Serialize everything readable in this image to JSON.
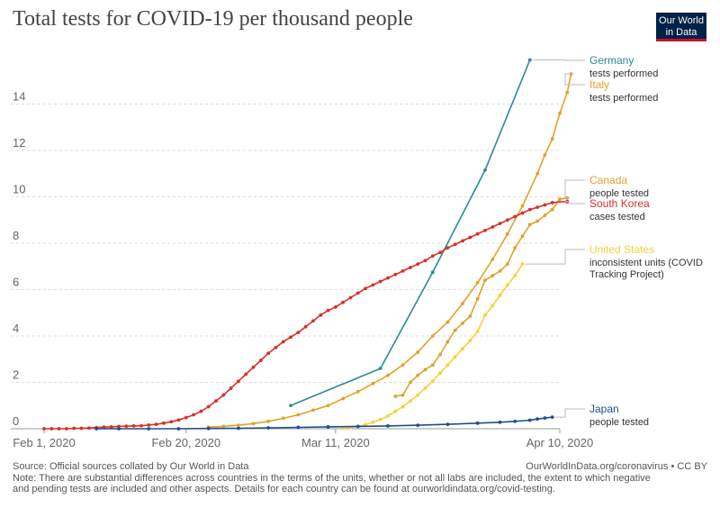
{
  "header": {
    "title": "Total tests for COVID-19 per thousand people",
    "logo_line1": "Our World",
    "logo_line2": "in Data"
  },
  "footer": {
    "source": "Source: Official sources collated by Our World in Data",
    "credit": "OurWorldInData.org/coronavirus • CC BY",
    "note_line1": "Note: There are substantial differences across countries in the terms of the units, whether or not all labs are included, the extent to which negative",
    "note_line2": "and pending tests are included and other aspects. Details for each country can be found at ourworldindata.org/covid-testing."
  },
  "chart_data": {
    "type": "line",
    "title": "Total tests for COVID-19 per thousand people",
    "xlabel": "",
    "ylabel": "",
    "x_unit": "days since Feb 1, 2020",
    "xlim": [
      0,
      69
    ],
    "ylim": [
      0,
      16
    ],
    "x_ticks": [
      {
        "day": 0,
        "label": "Feb 1, 2020"
      },
      {
        "day": 19,
        "label": "Feb 20, 2020"
      },
      {
        "day": 39,
        "label": "Mar 11, 2020"
      },
      {
        "day": 69,
        "label": "Apr 10, 2020"
      }
    ],
    "y_ticks": [
      0,
      2,
      4,
      6,
      8,
      10,
      12,
      14
    ],
    "grid": true,
    "series": [
      {
        "name": "Germany",
        "sublabel": "tests performed",
        "color": "#2a8b96",
        "points": [
          [
            33,
            1.0
          ],
          [
            45,
            2.6
          ],
          [
            52,
            6.75
          ],
          [
            59,
            11.15
          ],
          [
            65,
            15.9
          ]
        ]
      },
      {
        "name": "Italy",
        "sublabel": "tests performed",
        "color": "#e0a12c",
        "points": [
          [
            22,
            0.07
          ],
          [
            24,
            0.1
          ],
          [
            26,
            0.15
          ],
          [
            28,
            0.22
          ],
          [
            30,
            0.32
          ],
          [
            32,
            0.45
          ],
          [
            34,
            0.6
          ],
          [
            36,
            0.8
          ],
          [
            38,
            1.0
          ],
          [
            40,
            1.3
          ],
          [
            42,
            1.6
          ],
          [
            44,
            1.95
          ],
          [
            46,
            2.3
          ],
          [
            48,
            2.75
          ],
          [
            50,
            3.3
          ],
          [
            52,
            4.0
          ],
          [
            54,
            4.6
          ],
          [
            56,
            5.4
          ],
          [
            58,
            6.3
          ],
          [
            60,
            7.3
          ],
          [
            62,
            8.4
          ],
          [
            64,
            9.6
          ],
          [
            66,
            11.0
          ],
          [
            67,
            11.8
          ],
          [
            68,
            12.5
          ],
          [
            69,
            13.6
          ],
          [
            70,
            14.5
          ],
          [
            70.5,
            15.3
          ]
        ]
      },
      {
        "name": "Canada",
        "sublabel": "people tested",
        "color": "#e0a12c",
        "points": [
          [
            47,
            1.4
          ],
          [
            48,
            1.45
          ],
          [
            49,
            2.0
          ],
          [
            50,
            2.3
          ],
          [
            51,
            2.55
          ],
          [
            52,
            2.75
          ],
          [
            53,
            3.2
          ],
          [
            54,
            3.75
          ],
          [
            55,
            4.25
          ],
          [
            56,
            4.55
          ],
          [
            57,
            4.85
          ],
          [
            58,
            5.6
          ],
          [
            59,
            6.4
          ],
          [
            60,
            6.6
          ],
          [
            61,
            6.8
          ],
          [
            62,
            7.1
          ],
          [
            63,
            7.8
          ],
          [
            64,
            8.3
          ],
          [
            65,
            8.8
          ],
          [
            66,
            8.95
          ],
          [
            67,
            9.2
          ],
          [
            68,
            9.45
          ],
          [
            69,
            9.9
          ],
          [
            70,
            9.95
          ]
        ]
      },
      {
        "name": "South Korea",
        "sublabel": "cases tested",
        "color": "#d73027",
        "points": [
          [
            0,
            0.0
          ],
          [
            1,
            0.0
          ],
          [
            2,
            0.0
          ],
          [
            3,
            0.0
          ],
          [
            4,
            0.02
          ],
          [
            5,
            0.02
          ],
          [
            6,
            0.03
          ],
          [
            7,
            0.05
          ],
          [
            8,
            0.07
          ],
          [
            9,
            0.08
          ],
          [
            10,
            0.1
          ],
          [
            11,
            0.11
          ],
          [
            12,
            0.12
          ],
          [
            13,
            0.13
          ],
          [
            14,
            0.16
          ],
          [
            15,
            0.19
          ],
          [
            16,
            0.24
          ],
          [
            17,
            0.3
          ],
          [
            18,
            0.38
          ],
          [
            19,
            0.48
          ],
          [
            20,
            0.6
          ],
          [
            21,
            0.75
          ],
          [
            22,
            0.95
          ],
          [
            23,
            1.2
          ],
          [
            24,
            1.45
          ],
          [
            25,
            1.75
          ],
          [
            26,
            2.05
          ],
          [
            27,
            2.35
          ],
          [
            28,
            2.65
          ],
          [
            29,
            2.95
          ],
          [
            30,
            3.25
          ],
          [
            31,
            3.5
          ],
          [
            32,
            3.75
          ],
          [
            33,
            3.95
          ],
          [
            34,
            4.15
          ],
          [
            35,
            4.4
          ],
          [
            36,
            4.65
          ],
          [
            37,
            4.9
          ],
          [
            38,
            5.1
          ],
          [
            39,
            5.25
          ],
          [
            40,
            5.45
          ],
          [
            41,
            5.65
          ],
          [
            42,
            5.85
          ],
          [
            43,
            6.05
          ],
          [
            44,
            6.2
          ],
          [
            45,
            6.35
          ],
          [
            46,
            6.5
          ],
          [
            47,
            6.65
          ],
          [
            48,
            6.8
          ],
          [
            49,
            6.95
          ],
          [
            50,
            7.1
          ],
          [
            51,
            7.25
          ],
          [
            52,
            7.45
          ],
          [
            53,
            7.6
          ],
          [
            54,
            7.8
          ],
          [
            55,
            7.95
          ],
          [
            56,
            8.1
          ],
          [
            57,
            8.25
          ],
          [
            58,
            8.4
          ],
          [
            59,
            8.55
          ],
          [
            60,
            8.7
          ],
          [
            61,
            8.85
          ],
          [
            62,
            9.0
          ],
          [
            63,
            9.15
          ],
          [
            64,
            9.3
          ],
          [
            65,
            9.45
          ],
          [
            66,
            9.55
          ],
          [
            67,
            9.65
          ],
          [
            68,
            9.75
          ],
          [
            70,
            9.8
          ]
        ]
      },
      {
        "name": "United States",
        "sublabel": "inconsistent units (COVID Tracking Project)",
        "color": "#f2d33a",
        "points": [
          [
            40,
            0.02
          ],
          [
            41,
            0.05
          ],
          [
            42,
            0.1
          ],
          [
            43,
            0.18
          ],
          [
            44,
            0.28
          ],
          [
            45,
            0.4
          ],
          [
            46,
            0.55
          ],
          [
            47,
            0.75
          ],
          [
            48,
            0.95
          ],
          [
            49,
            1.2
          ],
          [
            50,
            1.45
          ],
          [
            51,
            1.75
          ],
          [
            52,
            2.05
          ],
          [
            53,
            2.4
          ],
          [
            54,
            2.75
          ],
          [
            55,
            3.1
          ],
          [
            56,
            3.45
          ],
          [
            57,
            3.8
          ],
          [
            58,
            4.2
          ],
          [
            59,
            4.9
          ],
          [
            60,
            5.3
          ],
          [
            61,
            5.75
          ],
          [
            62,
            6.2
          ],
          [
            63,
            6.6
          ],
          [
            64,
            7.1
          ]
        ]
      },
      {
        "name": "Japan",
        "sublabel": "people tested",
        "color": "#1f4e8c",
        "points": [
          [
            7,
            0.0
          ],
          [
            10,
            0.0
          ],
          [
            14,
            0.0
          ],
          [
            18,
            0.0
          ],
          [
            22,
            0.01
          ],
          [
            26,
            0.02
          ],
          [
            30,
            0.04
          ],
          [
            34,
            0.06
          ],
          [
            38,
            0.08
          ],
          [
            42,
            0.1
          ],
          [
            46,
            0.12
          ],
          [
            50,
            0.15
          ],
          [
            54,
            0.19
          ],
          [
            58,
            0.24
          ],
          [
            61,
            0.28
          ],
          [
            63,
            0.32
          ],
          [
            65,
            0.37
          ],
          [
            66,
            0.42
          ],
          [
            67,
            0.46
          ],
          [
            68,
            0.5
          ]
        ]
      }
    ]
  }
}
